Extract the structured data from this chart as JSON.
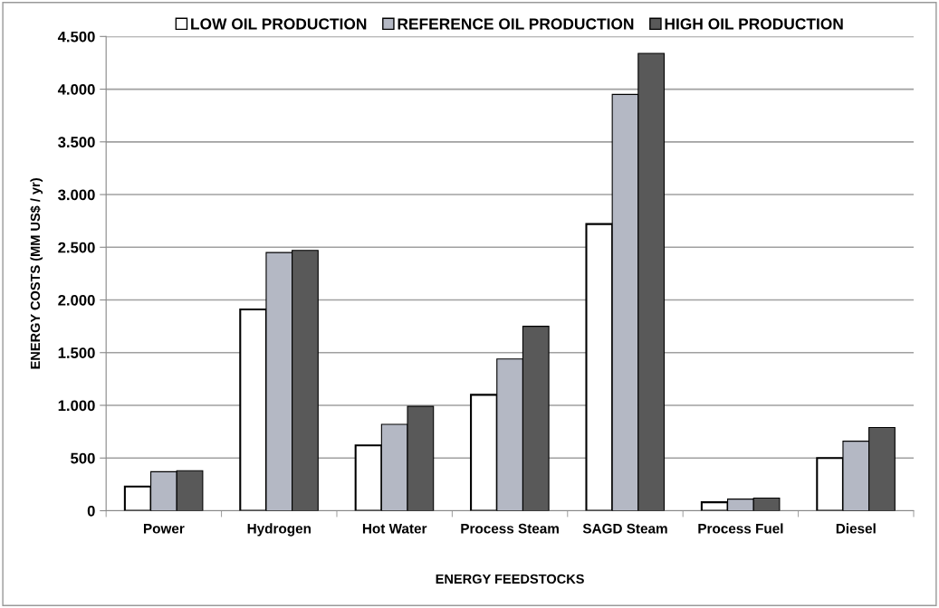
{
  "chart_data": {
    "type": "bar",
    "xlabel": "ENERGY FEEDSTOCKS",
    "ylabel": "ENERGY COSTS (MM US$ / yr)",
    "categories": [
      "Power",
      "Hydrogen",
      "Hot Water",
      "Process Steam",
      "SAGD Steam",
      "Process Fuel",
      "Diesel"
    ],
    "series": [
      {
        "name": "LOW OIL PRODUCTION",
        "color": "#ffffff",
        "values": [
          230,
          1910,
          620,
          1100,
          2720,
          80,
          500
        ]
      },
      {
        "name": "REFERENCE OIL PRODUCTION",
        "color": "#b4b8c4",
        "values": [
          370,
          2450,
          820,
          1440,
          3950,
          110,
          660
        ]
      },
      {
        "name": "HIGH OIL PRODUCTION",
        "color": "#595959",
        "values": [
          380,
          2470,
          990,
          1750,
          4340,
          120,
          790
        ]
      }
    ],
    "ylim": [
      0,
      4500
    ],
    "yticks": [
      0,
      {
        "value": 500,
        "label": "500"
      },
      {
        "value": 1000,
        "label": "1.000"
      },
      {
        "value": 1500,
        "label": "1.500"
      },
      {
        "value": 2000,
        "label": "2.000"
      },
      {
        "value": 2500,
        "label": "2.500"
      },
      {
        "value": 3000,
        "label": "3.000"
      },
      {
        "value": 3500,
        "label": "3.500"
      },
      {
        "value": 4000,
        "label": "4.000"
      },
      {
        "value": 4500,
        "label": "4.500"
      }
    ],
    "grid": "y",
    "legend": "top"
  }
}
